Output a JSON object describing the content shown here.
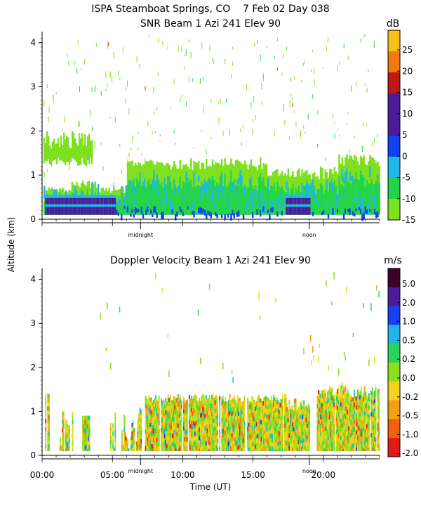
{
  "title_line": "ISPA Steamboat Springs, CO    7 Feb 02 Day 038",
  "ylabel": "Altitude (km)",
  "xlabel": "Time (UT)",
  "x_ticks": [
    "00:00",
    "05:00",
    "10:00",
    "15:00",
    "20:00"
  ],
  "day_markers": [
    "midnight",
    "noon"
  ],
  "chart_data": [
    {
      "type": "heatmap",
      "title": "SNR Beam 1 Azi 241 Elev 90",
      "unit": "dB",
      "x_range_hours": [
        0,
        24
      ],
      "ylim": [
        0,
        4.25
      ],
      "y_ticks": [
        0,
        1,
        2,
        3,
        4
      ],
      "colorbar_ticks": [
        "25",
        "20",
        "15",
        "10",
        "5",
        "0",
        "-5",
        "-10",
        "-15"
      ],
      "colors": [
        "#7fe020",
        "#22d44a",
        "#1fb7e8",
        "#1140f0",
        "#4b1b9a",
        "#c01818",
        "#f07a10",
        "#f5c21a"
      ]
    },
    {
      "type": "heatmap",
      "title": "Doppler Velocity Beam 1 Azi 241 Elev 90",
      "unit": "m/s",
      "x_range_hours": [
        0,
        24
      ],
      "ylim": [
        0,
        4.25
      ],
      "y_ticks": [
        0,
        1,
        2,
        3,
        4
      ],
      "colorbar_ticks": [
        "5.0",
        "2.0",
        "1.0",
        "0.5",
        "0.2",
        "0.0",
        "-0.2",
        "-0.5",
        "-1.0",
        "-2.0"
      ],
      "colors": [
        "#3a0428",
        "#4c1a9c",
        "#1840f0",
        "#20b4e8",
        "#28d45c",
        "#8ae020",
        "#f2d41c",
        "#f5a014",
        "#f06010",
        "#e01a1a"
      ]
    }
  ]
}
